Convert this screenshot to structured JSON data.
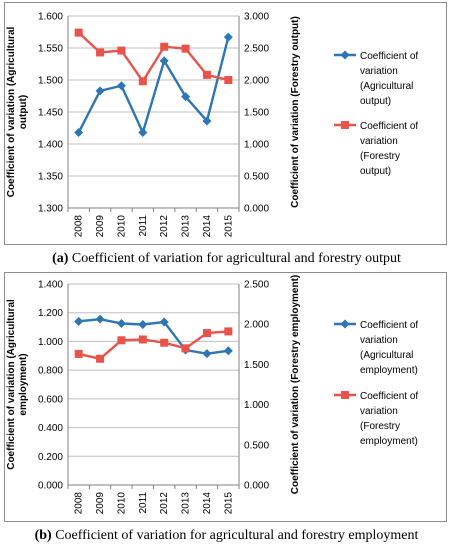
{
  "chart_data": [
    {
      "type": "line",
      "categories": [
        "2008",
        "2009",
        "2010",
        "2011",
        "2012",
        "2013",
        "2014",
        "2015"
      ],
      "series": [
        {
          "name": "Coefficient of variation (Agricultural output)",
          "axis": "left",
          "color": "#2e75b6",
          "marker": "diamond",
          "values": [
            1.418,
            1.483,
            1.491,
            1.418,
            1.53,
            1.474,
            1.436,
            1.567
          ]
        },
        {
          "name": "Coefficient of variation (Forestry output)",
          "axis": "right",
          "color": "#e8544c",
          "marker": "square",
          "values": [
            2.74,
            2.43,
            2.46,
            1.98,
            2.52,
            2.49,
            2.08,
            2.0
          ]
        }
      ],
      "y_left": {
        "label": "Coefficient of variation (Agricultural output)",
        "ylim": [
          1.3,
          1.6
        ],
        "ticks": [
          "1.600",
          "1.550",
          "1.500",
          "1.450",
          "1.400",
          "1.350",
          "1.300"
        ]
      },
      "y_right": {
        "label": "Coefficient of variation (Forestry output)",
        "ylim": [
          0,
          3
        ],
        "ticks": [
          "3.000",
          "2.500",
          "2.000",
          "1.500",
          "1.000",
          "0.500",
          "0.000"
        ]
      },
      "legend": [
        [
          "Coefficient of",
          "variation",
          "(Agricultural",
          "output)"
        ],
        [
          "Coefficient of",
          "variation",
          "(Forestry",
          "output)"
        ]
      ],
      "legend_placement": "right",
      "grid": true
    },
    {
      "type": "line",
      "categories": [
        "2008",
        "2009",
        "2010",
        "2011",
        "2012",
        "2013",
        "2014",
        "2015"
      ],
      "series": [
        {
          "name": "Coefficient of variation (Agricultural employment)",
          "axis": "left",
          "color": "#2e75b6",
          "marker": "diamond",
          "values": [
            1.14,
            1.155,
            1.125,
            1.118,
            1.135,
            0.94,
            0.915,
            0.935
          ]
        },
        {
          "name": "Coefficient of variation (Forestry employment)",
          "axis": "right",
          "color": "#e8544c",
          "marker": "square",
          "values": [
            1.63,
            1.57,
            1.8,
            1.81,
            1.77,
            1.7,
            1.89,
            1.91
          ]
        }
      ],
      "y_left": {
        "label": "Coefficient of variation (Agricultural employment)",
        "ylim": [
          0,
          1.4
        ],
        "ticks": [
          "1.400",
          "1.200",
          "1.000",
          "0.800",
          "0.600",
          "0.400",
          "0.200",
          "0.000"
        ]
      },
      "y_right": {
        "label": "Coefficient of variation (Forestry employment)",
        "ylim": [
          0,
          2.5
        ],
        "ticks": [
          "2.500",
          "2.000",
          "1.500",
          "1.000",
          "0.500",
          "0.000"
        ]
      },
      "legend": [
        [
          "Coefficient of",
          "variation",
          "(Agricultural",
          "employment)"
        ],
        [
          "Coefficient of",
          "variation",
          "(Forestry",
          "employment)"
        ]
      ],
      "legend_placement": "right",
      "grid": true
    }
  ],
  "captions": [
    {
      "letter": "(a)",
      "text": " Coefficient of variation for agricultural and forestry output"
    },
    {
      "letter": "(b)",
      "text": " Coefficient of variation for agricultural and forestry employment"
    }
  ]
}
